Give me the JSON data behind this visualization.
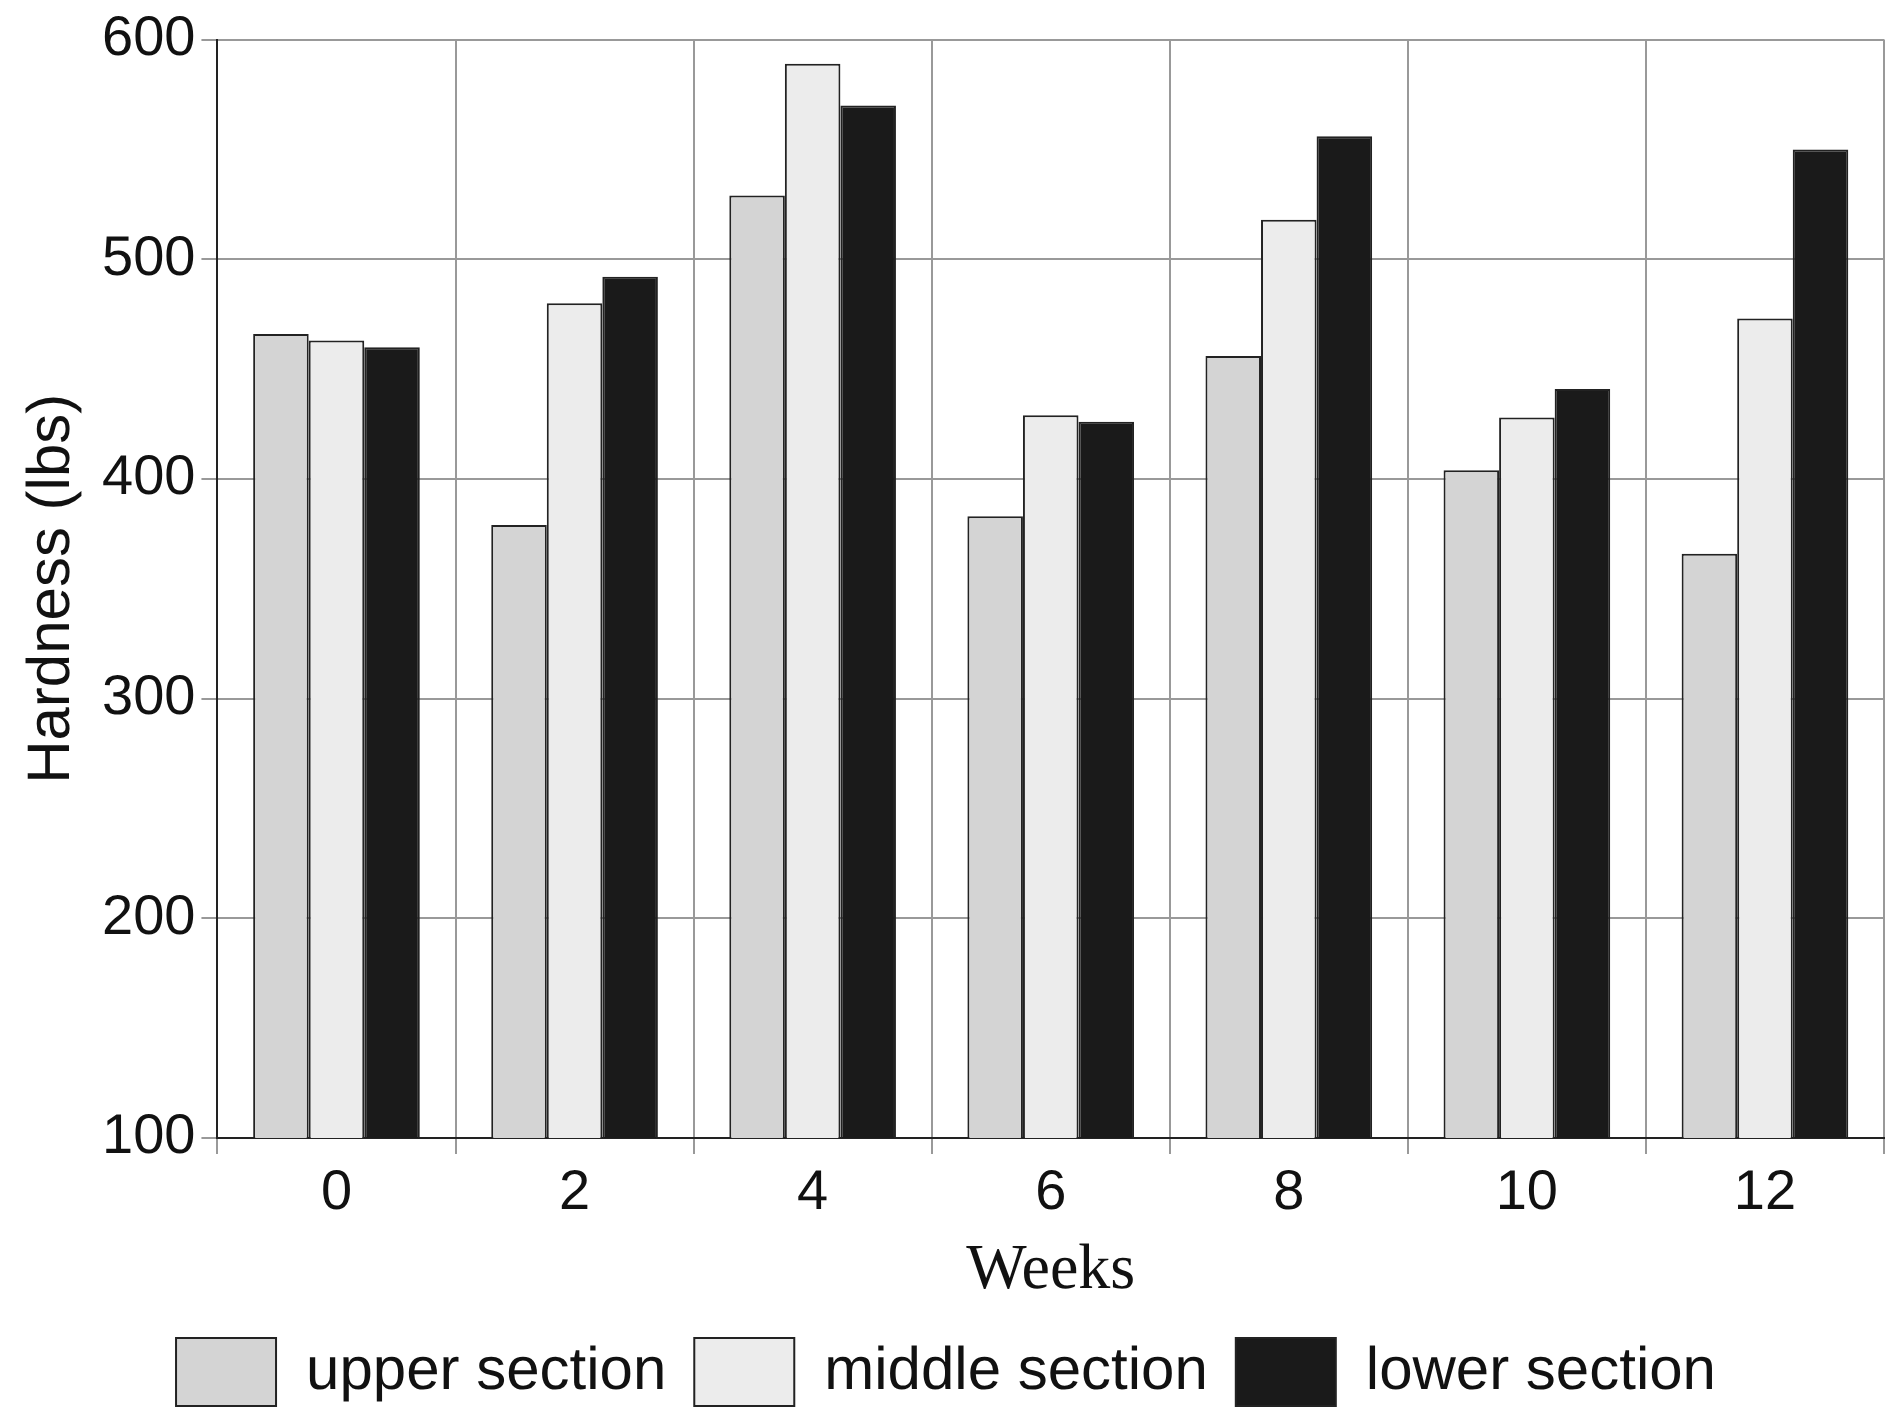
{
  "chart_data": {
    "type": "bar",
    "xlabel": "Weeks",
    "ylabel": "Hardness (lbs)",
    "categories": [
      "0",
      "2",
      "4",
      "6",
      "8",
      "10",
      "12"
    ],
    "series": [
      {
        "name": "upper section",
        "color": "#d4d4d4",
        "values": [
          466,
          379,
          529,
          383,
          456,
          404,
          366
        ]
      },
      {
        "name": "middle section",
        "color": "#ececec",
        "values": [
          463,
          480,
          589,
          429,
          518,
          428,
          473
        ]
      },
      {
        "name": "lower section",
        "color": "#1a1a1a",
        "values": [
          460,
          492,
          570,
          426,
          556,
          441,
          550
        ]
      }
    ],
    "ylim": [
      100,
      600
    ],
    "yticks": [
      100,
      200,
      300,
      400,
      500,
      600
    ],
    "grid": true,
    "legend": "bottom"
  }
}
